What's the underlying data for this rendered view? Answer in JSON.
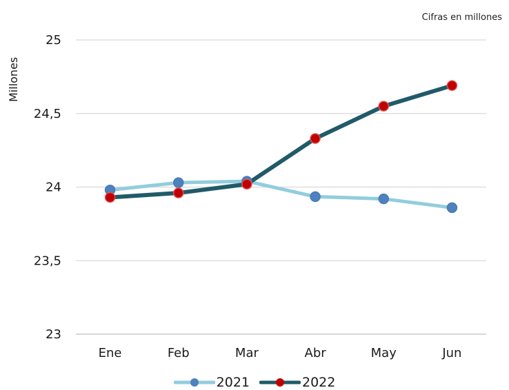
{
  "note": "Cifras en millones",
  "chart_data": {
    "type": "line",
    "title": "",
    "xlabel": "",
    "ylabel": "Millones",
    "categories": [
      "Ene",
      "Feb",
      "Mar",
      "Abr",
      "May",
      "Jun"
    ],
    "ylim": [
      23,
      25
    ],
    "yticks": [
      "23",
      "23,5",
      "24",
      "24,5",
      "25"
    ],
    "ytick_values": [
      23,
      23.5,
      24,
      24.5,
      25
    ],
    "grid": true,
    "legend": "bottom",
    "series": [
      {
        "name": "2021",
        "values": [
          23.98,
          24.03,
          24.04,
          23.935,
          23.92,
          23.86
        ],
        "line_color": "#92cddc",
        "marker_color": "#4f81bd"
      },
      {
        "name": "2022",
        "values": [
          23.93,
          23.96,
          24.02,
          24.33,
          24.55,
          24.69
        ],
        "line_color": "#215a69",
        "marker_color": "#c00000"
      }
    ]
  }
}
